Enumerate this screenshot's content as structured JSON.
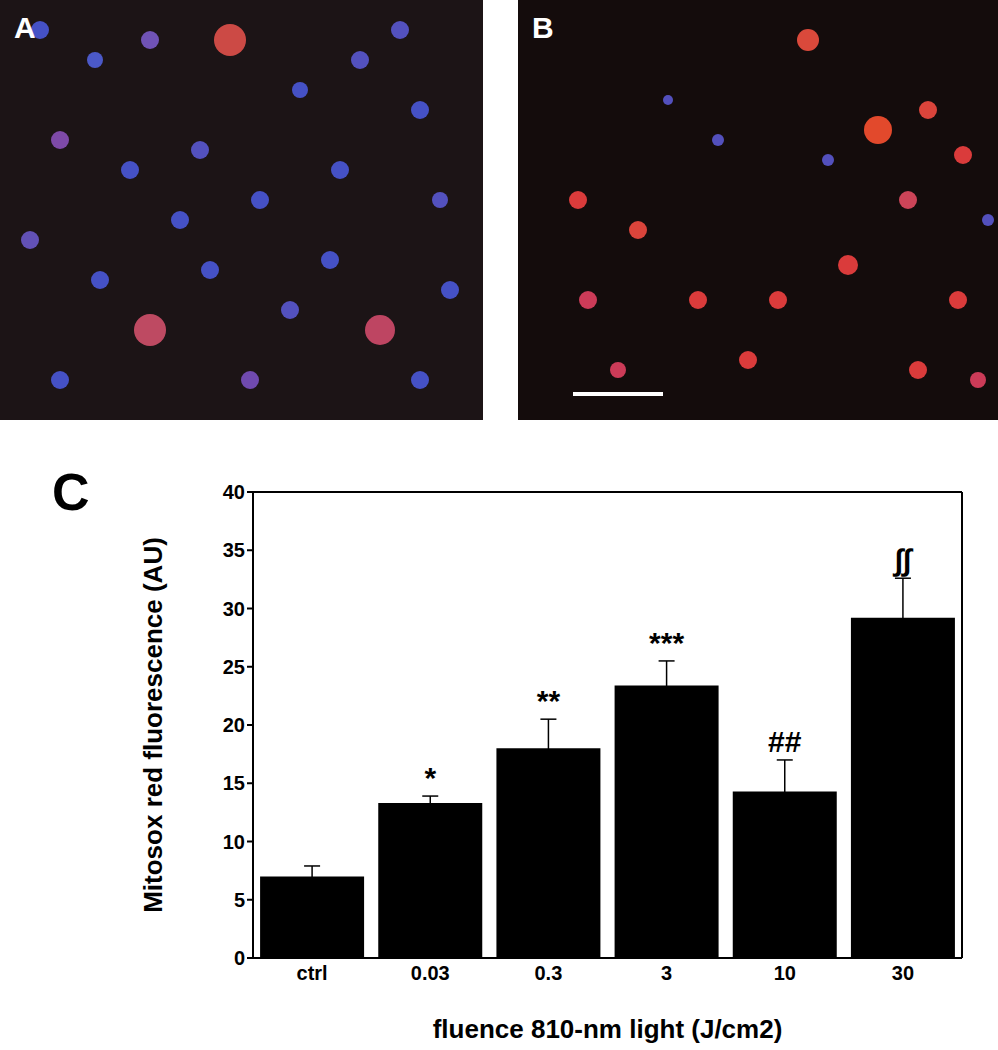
{
  "panels": [
    "A",
    "B"
  ],
  "chart_panel": "C",
  "chart_data": {
    "type": "bar",
    "x_label": "fluence 810-nm light (J/cm2)",
    "y_label": "Mitosox red fluorescence (AU)",
    "categories": [
      "ctrl",
      "0.03",
      "0.3",
      "3",
      "10",
      "30"
    ],
    "values": [
      7,
      13.3,
      18,
      23.4,
      14.3,
      29.2
    ],
    "errors": [
      0.9,
      0.6,
      2.5,
      2.1,
      2.7,
      3.4
    ],
    "annotations": [
      null,
      "*",
      "**",
      "***",
      "##",
      "∫∫"
    ],
    "color": "#000000",
    "ylim": [
      0,
      40
    ],
    "yticks": [
      0,
      5,
      10,
      15,
      20,
      25,
      30,
      35,
      40
    ],
    "grid": false
  }
}
